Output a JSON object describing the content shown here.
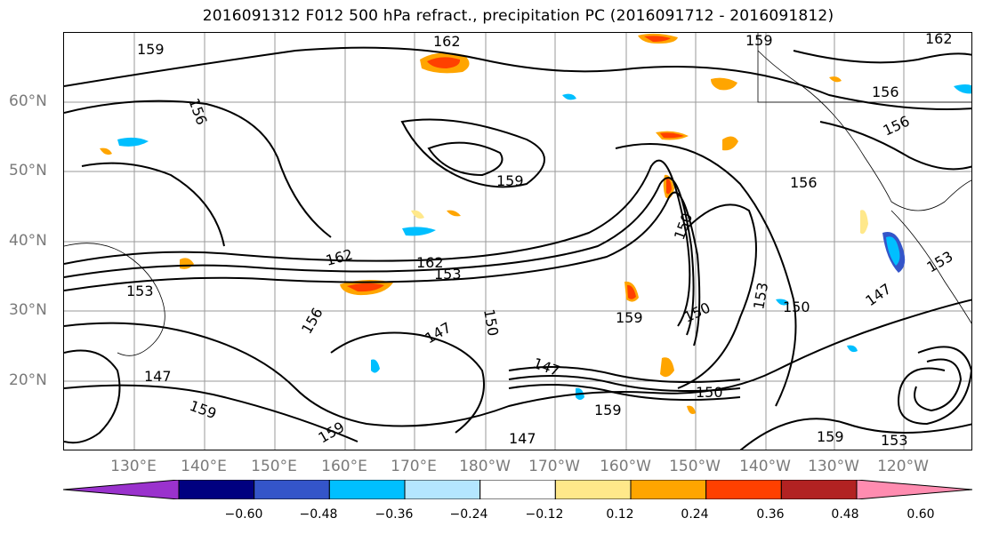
{
  "title": "2016091312 F012 500 hPa refract., precipitation PC (2016091712 - 2016091812)",
  "lat_labels": [
    "60°N",
    "50°N",
    "40°N",
    "30°N",
    "20°N"
  ],
  "lon_labels": [
    "130°E",
    "140°E",
    "150°E",
    "160°E",
    "170°E",
    "180°W",
    "170°W",
    "160°W",
    "150°W",
    "140°W",
    "130°W",
    "120°W"
  ],
  "contour_labels": [
    "159",
    "162",
    "159",
    "162",
    "156",
    "156",
    "156",
    "159",
    "156",
    "162",
    "162",
    "153",
    "150",
    "150",
    "153",
    "150",
    "147",
    "147",
    "147",
    "159",
    "153",
    "147",
    "159",
    "159",
    "159",
    "153",
    "150",
    "156",
    "147",
    "150",
    "159",
    "153"
  ],
  "colorbar": {
    "colors": [
      "#9a32cd",
      "#000080",
      "#3455c9",
      "#00bfff",
      "#b4e6ff",
      "#ffffff",
      "#ffe88a",
      "#ffa500",
      "#ff4000",
      "#b22222",
      "#ff8cb0"
    ],
    "tick_labels": [
      "−0.60",
      "−0.48",
      "−0.36",
      "−0.24",
      "−0.12",
      "0.12",
      "0.24",
      "0.36",
      "0.48",
      "0.60"
    ]
  }
}
